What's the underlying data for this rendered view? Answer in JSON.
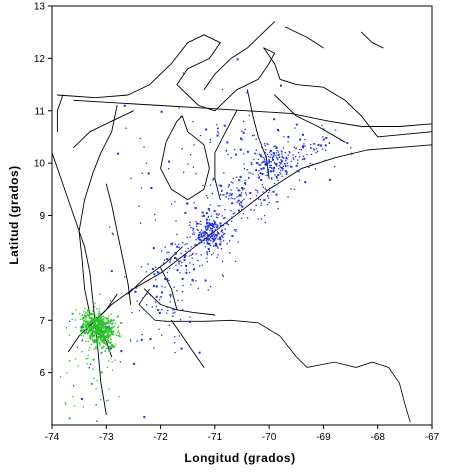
{
  "chart_data": {
    "type": "scatter",
    "xlabel": "Longitud (grados)",
    "ylabel": "Latitud (grados)",
    "xlim": [
      -74,
      -67
    ],
    "ylim": [
      5,
      13
    ],
    "xticks": [
      -74,
      -73,
      -72,
      -71,
      -70,
      -69,
      -68,
      -67
    ],
    "yticks": [
      6,
      7,
      8,
      9,
      10,
      11,
      12,
      13
    ],
    "grid": false,
    "colors": {
      "blue_seismicity": "#1e2fd6",
      "green_seismicity": "#27c227",
      "lines": "#000000"
    },
    "series": [
      {
        "clusters": [
          {
            "center": [
              -71.1,
              8.7
            ],
            "spread": [
              0.18,
              0.18
            ],
            "count": 220
          },
          {
            "center": [
              -70.0,
              10.0
            ],
            "spread": [
              0.22,
              0.18
            ],
            "count": 160
          },
          {
            "center": [
              -70.6,
              9.4
            ],
            "spread": [
              0.45,
              0.25
            ],
            "count": 140
          },
          {
            "center": [
              -71.6,
              8.2
            ],
            "spread": [
              0.35,
              0.22
            ],
            "count": 90
          },
          {
            "center": [
              -72.0,
              7.3
            ],
            "spread": [
              0.3,
              0.45
            ],
            "count": 70
          },
          {
            "center": [
              -69.3,
              10.3
            ],
            "spread": [
              0.35,
              0.2
            ],
            "count": 70
          },
          {
            "center": [
              -70.9,
              10.5
            ],
            "spread": [
              0.45,
              0.35
            ],
            "count": 45
          },
          {
            "center": [
              -72.3,
              9.5
            ],
            "spread": [
              0.55,
              0.9
            ],
            "count": 25
          },
          {
            "center": [
              -73.0,
              6.2
            ],
            "spread": [
              0.4,
              0.5
            ],
            "count": 25
          }
        ],
        "isolated_points": [
          [
            -71.3,
            6.4
          ],
          [
            -72.0,
            11.0
          ],
          [
            -70.6,
            12.0
          ],
          [
            -69.8,
            11.5
          ],
          [
            -68.5,
            10.2
          ],
          [
            -68.9,
            9.7
          ],
          [
            -72.8,
            10.2
          ]
        ]
      },
      {
        "clusters": [
          {
            "center": [
              -73.15,
              6.85
            ],
            "spread": [
              0.14,
              0.12
            ],
            "count": 420
          },
          {
            "center": [
              -73.35,
              7.05
            ],
            "spread": [
              0.12,
              0.12
            ],
            "count": 80
          },
          {
            "center": [
              -73.0,
              6.6
            ],
            "spread": [
              0.1,
              0.08
            ],
            "count": 60
          },
          {
            "center": [
              -73.2,
              6.2
            ],
            "spread": [
              0.3,
              0.5
            ],
            "count": 50
          }
        ]
      }
    ]
  }
}
